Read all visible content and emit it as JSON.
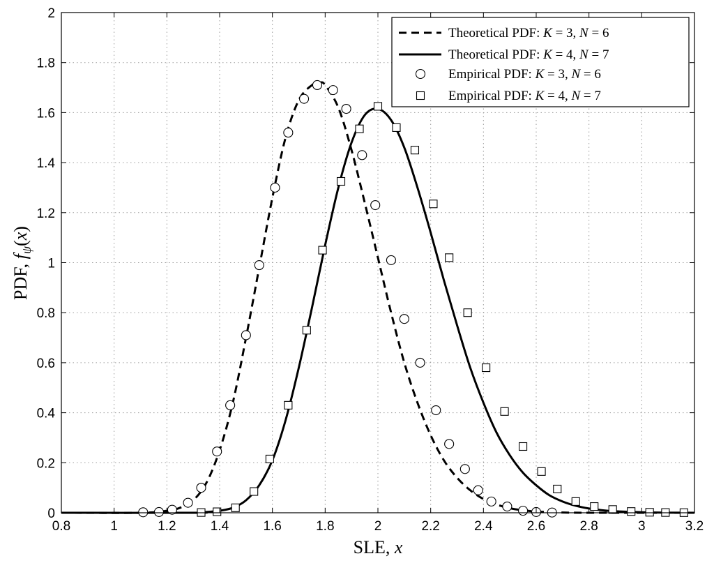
{
  "chart_data": {
    "type": "line",
    "xlabel": "SLE, x",
    "ylabel": "PDF, f_ψ(x)",
    "xlim": [
      0.8,
      3.2
    ],
    "ylim": [
      0,
      2
    ],
    "xticks": [
      "0.8",
      "1",
      "1.2",
      "1.4",
      "1.6",
      "1.8",
      "2",
      "2.2",
      "2.4",
      "2.6",
      "2.8",
      "3",
      "3.2"
    ],
    "yticks": [
      "0",
      "0.2",
      "0.4",
      "0.6",
      "0.8",
      "1",
      "1.2",
      "1.4",
      "1.6",
      "1.8",
      "2"
    ],
    "grid": true,
    "legend_position": "top-right",
    "series": [
      {
        "name": "Theoretical PDF: K = 3, N = 6",
        "style": "dashed",
        "marker": "none",
        "x": [
          0.8,
          1.1,
          1.2,
          1.25,
          1.3,
          1.35,
          1.4,
          1.45,
          1.5,
          1.55,
          1.6,
          1.65,
          1.7,
          1.75,
          1.78,
          1.8,
          1.85,
          1.9,
          1.95,
          2.0,
          2.05,
          2.1,
          2.15,
          2.2,
          2.25,
          2.3,
          2.35,
          2.4,
          2.45,
          2.5,
          2.55,
          2.6,
          2.7,
          2.8,
          3.0,
          3.2
        ],
        "y": [
          0,
          0,
          0.008,
          0.02,
          0.05,
          0.12,
          0.25,
          0.44,
          0.7,
          0.98,
          1.26,
          1.5,
          1.65,
          1.71,
          1.72,
          1.71,
          1.62,
          1.45,
          1.24,
          1.02,
          0.8,
          0.6,
          0.44,
          0.31,
          0.21,
          0.14,
          0.09,
          0.055,
          0.033,
          0.018,
          0.01,
          0.005,
          0.001,
          0,
          0,
          0
        ]
      },
      {
        "name": "Theoretical PDF: K = 4, N = 7",
        "style": "solid",
        "marker": "none",
        "x": [
          0.8,
          1.3,
          1.35,
          1.4,
          1.45,
          1.5,
          1.55,
          1.6,
          1.65,
          1.7,
          1.75,
          1.8,
          1.85,
          1.9,
          1.95,
          2.0,
          2.05,
          2.1,
          2.15,
          2.2,
          2.25,
          2.3,
          2.35,
          2.4,
          2.45,
          2.5,
          2.55,
          2.6,
          2.65,
          2.7,
          2.75,
          2.8,
          2.85,
          2.9,
          3.0,
          3.1,
          3.2
        ],
        "y": [
          0,
          0,
          0.003,
          0.008,
          0.02,
          0.05,
          0.11,
          0.21,
          0.37,
          0.58,
          0.82,
          1.07,
          1.3,
          1.48,
          1.59,
          1.615,
          1.57,
          1.46,
          1.3,
          1.12,
          0.93,
          0.75,
          0.58,
          0.44,
          0.32,
          0.23,
          0.16,
          0.11,
          0.07,
          0.045,
          0.028,
          0.017,
          0.01,
          0.006,
          0.002,
          0.0005,
          0
        ]
      },
      {
        "name": "Empirical PDF: K = 3, N = 6",
        "style": "none",
        "marker": "circle",
        "x": [
          1.11,
          1.17,
          1.22,
          1.28,
          1.33,
          1.39,
          1.44,
          1.5,
          1.55,
          1.61,
          1.66,
          1.72,
          1.77,
          1.83,
          1.88,
          1.94,
          1.99,
          2.05,
          2.1,
          2.16,
          2.22,
          2.27,
          2.33,
          2.38,
          2.43,
          2.49,
          2.55,
          2.6,
          2.66
        ],
        "y": [
          0.002,
          0.003,
          0.012,
          0.04,
          0.1,
          0.245,
          0.43,
          0.71,
          0.99,
          1.3,
          1.52,
          1.655,
          1.71,
          1.69,
          1.615,
          1.43,
          1.23,
          1.01,
          0.775,
          0.6,
          0.41,
          0.275,
          0.175,
          0.09,
          0.045,
          0.025,
          0.008,
          0.003,
          0.001
        ]
      },
      {
        "name": "Empirical PDF: K = 4, N = 7",
        "style": "none",
        "marker": "square",
        "x": [
          1.33,
          1.39,
          1.46,
          1.53,
          1.59,
          1.66,
          1.73,
          1.79,
          1.86,
          1.93,
          2.0,
          2.07,
          2.14,
          2.21,
          2.27,
          2.34,
          2.41,
          2.48,
          2.55,
          2.62,
          2.68,
          2.75,
          2.82,
          2.89,
          2.96,
          3.03,
          3.09,
          3.16
        ],
        "y": [
          0.001,
          0.004,
          0.02,
          0.085,
          0.215,
          0.43,
          0.73,
          1.05,
          1.325,
          1.535,
          1.625,
          1.54,
          1.45,
          1.235,
          1.02,
          0.8,
          0.58,
          0.405,
          0.265,
          0.165,
          0.095,
          0.045,
          0.025,
          0.013,
          0.005,
          0.002,
          0.001,
          0.0005
        ]
      }
    ]
  }
}
